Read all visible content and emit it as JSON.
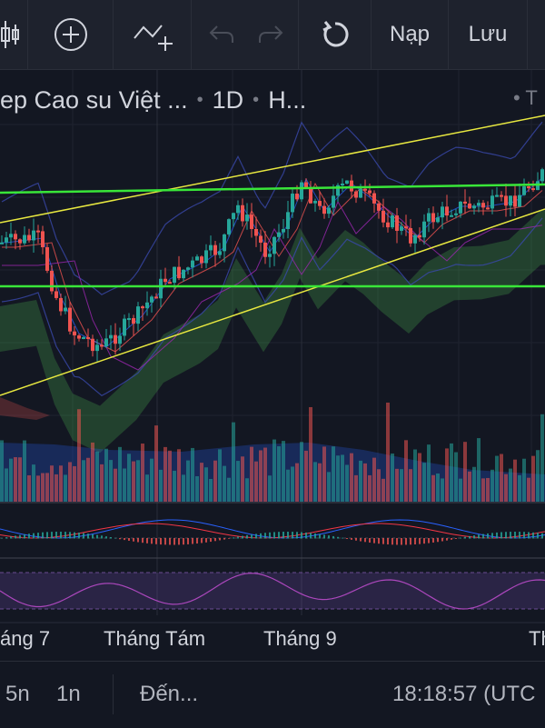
{
  "toolbar": {
    "candle_icon": "candles-icon",
    "add_icon": "plus-circle-icon",
    "indicator_icon": "indicator-add-icon",
    "undo_icon": "undo-icon",
    "redo_icon": "redo-icon",
    "reload_icon": "reload-icon",
    "load_label": "Nạp",
    "save_label": "Lưu"
  },
  "legend": {
    "symbol_name": "ep Cao su Việt ...",
    "interval": "1D",
    "exchange": "H...",
    "right_label": "T"
  },
  "xaxis": {
    "labels": [
      "áng 7",
      "Tháng Tám",
      "Tháng 9",
      "Th"
    ]
  },
  "bottom_bar": {
    "range_5y": "5n",
    "range_1y": "1n",
    "goto_label": "Đến...",
    "clock": "18:18:57 (UTC"
  },
  "colors": {
    "background": "#131722",
    "toolbar": "#1e222d",
    "candle_up": "#26a69a",
    "candle_down": "#ef5350",
    "trendline": "#e8e840",
    "support_line": "#39e639",
    "macd_line": "#2962ff",
    "signal_line": "#f23645",
    "rsi_line": "#ab47bc"
  }
}
